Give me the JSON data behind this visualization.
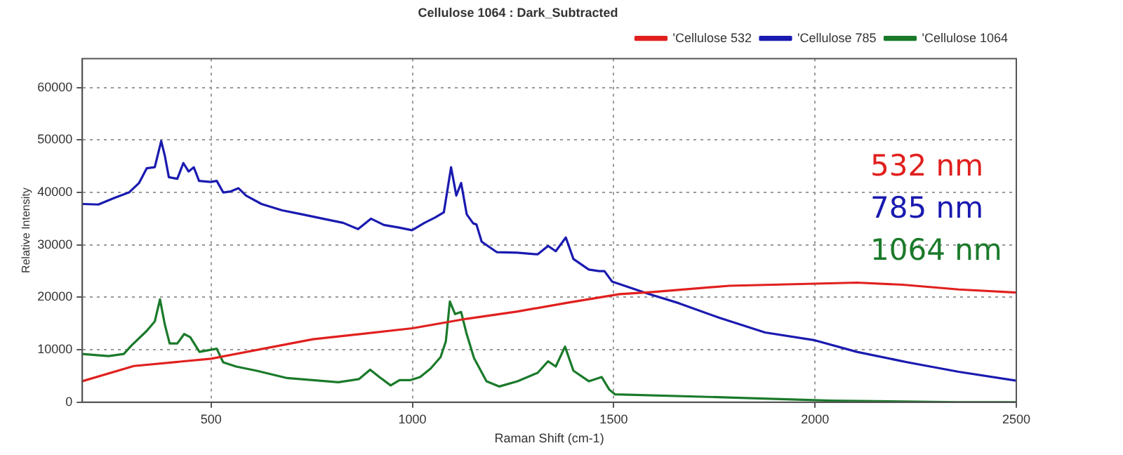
{
  "chart_data": {
    "type": "line",
    "title": "Cellulose 1064 : Dark_Subtracted",
    "xlabel": "Raman Shift (cm-1)",
    "ylabel": "Relative Intensity",
    "xlim": [
      180,
      2500
    ],
    "xticks": [
      500,
      1000,
      1500,
      2000,
      2500
    ],
    "ylim": [
      0,
      65500
    ],
    "yticks": [
      0,
      10000,
      20000,
      30000,
      40000,
      50000,
      60000
    ],
    "grid": true,
    "legend": "top right",
    "marker": "none",
    "line_style": "solid",
    "annotations": [
      "532 nm",
      "785 nm",
      "1064 nm"
    ],
    "series": [
      {
        "name": "'Cellulose 532",
        "color": "#e0201e",
        "x": [
          180,
          308,
          500,
          753,
          1000,
          1134,
          1261,
          1388,
          1515,
          1597,
          1787,
          2000,
          2104,
          2218,
          2357,
          2500
        ],
        "values": [
          4000,
          6900,
          8300,
          12000,
          14100,
          15900,
          17300,
          19000,
          20600,
          21000,
          22200,
          22600,
          22800,
          22400,
          21500,
          20900
        ]
      },
      {
        "name": "'Cellulose 785",
        "color": "#1a1ab0",
        "x": [
          180,
          220,
          258,
          296,
          321,
          340,
          360,
          376,
          385,
          395,
          416,
          431,
          444,
          457,
          470,
          499,
          514,
          530,
          549,
          568,
          587,
          625,
          676,
          727,
          777,
          828,
          865,
          897,
          929,
          967,
          999,
          1030,
          1056,
          1078,
          1096,
          1109,
          1121,
          1135,
          1151,
          1159,
          1172,
          1210,
          1261,
          1311,
          1337,
          1356,
          1381,
          1400,
          1438,
          1464,
          1477,
          1496,
          1585,
          1661,
          1762,
          1876,
          2000,
          2104,
          2230,
          2357,
          2500
        ],
        "values": [
          37800,
          37700,
          38900,
          40000,
          41800,
          44600,
          44800,
          49800,
          47000,
          42900,
          42600,
          45600,
          44000,
          44800,
          42200,
          42000,
          42200,
          40000,
          40200,
          40800,
          39400,
          37800,
          36600,
          35800,
          35000,
          34200,
          33000,
          35000,
          33800,
          33300,
          32800,
          34200,
          35200,
          36200,
          44800,
          39400,
          41800,
          35800,
          34100,
          33900,
          30600,
          28600,
          28500,
          28200,
          29800,
          28800,
          31400,
          27300,
          25300,
          25000,
          25000,
          23000,
          20700,
          18900,
          16100,
          13300,
          11800,
          9600,
          7600,
          5800,
          4100
        ]
      },
      {
        "name": "'Cellulose 1064",
        "color": "#1a7a2a",
        "x": [
          180,
          245,
          283,
          302,
          340,
          360,
          373,
          385,
          397,
          416,
          433,
          448,
          471,
          499,
          514,
          530,
          562,
          613,
          689,
          816,
          867,
          895,
          918,
          946,
          968,
          994,
          1019,
          1045,
          1070,
          1083,
          1093,
          1106,
          1121,
          1134,
          1153,
          1184,
          1216,
          1261,
          1311,
          1337,
          1356,
          1379,
          1400,
          1438,
          1470,
          1489,
          1503,
          1787,
          2041,
          2357,
          2500
        ],
        "values": [
          9200,
          8800,
          9200,
          10800,
          13600,
          15400,
          19600,
          14800,
          11200,
          11200,
          13000,
          12400,
          9600,
          10000,
          10200,
          7600,
          6800,
          6000,
          4600,
          3800,
          4400,
          6200,
          4800,
          3200,
          4200,
          4200,
          4800,
          6400,
          8600,
          11600,
          19200,
          16800,
          17200,
          13200,
          8400,
          4000,
          3000,
          4000,
          5600,
          7800,
          6800,
          10600,
          6000,
          4000,
          4800,
          2400,
          1500,
          900,
          300,
          0,
          0
        ]
      }
    ]
  }
}
